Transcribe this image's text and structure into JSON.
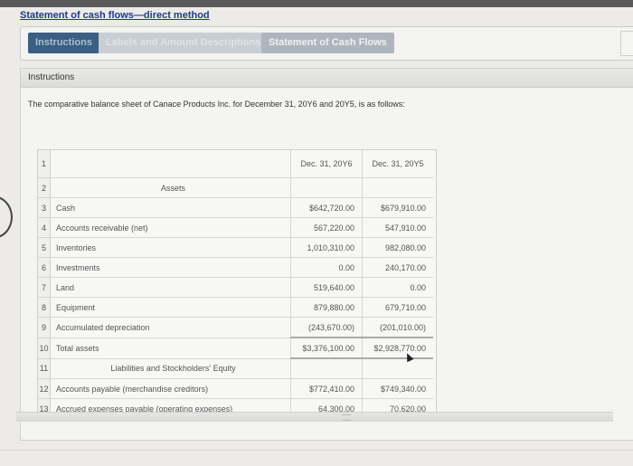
{
  "page": {
    "title": "Statement of cash flows—direct method"
  },
  "tabs": [
    {
      "label": "Instructions",
      "active": true
    },
    {
      "label": "Labels and Amount Descriptions",
      "active": false
    },
    {
      "label": "Statement of Cash Flows",
      "active": false
    }
  ],
  "panel": {
    "header": "Instructions",
    "intro": "The comparative balance sheet of Canace Products Inc. for December 31, 20Y6 and 20Y5, is as follows:"
  },
  "sheet": {
    "columns": [
      "",
      "Dec. 31, 20Y6",
      "Dec. 31, 20Y5"
    ],
    "rows": [
      {
        "num": "1",
        "label": "",
        "v1": "Dec. 31, 20Y6",
        "v2": "Dec. 31, 20Y5"
      },
      {
        "num": "2",
        "label": "Assets",
        "v1": "",
        "v2": ""
      },
      {
        "num": "3",
        "label": "Cash",
        "v1": "$642,720.00",
        "v2": "$679,910.00"
      },
      {
        "num": "4",
        "label": "Accounts receivable (net)",
        "v1": "567,220.00",
        "v2": "547,910.00"
      },
      {
        "num": "5",
        "label": "Inventories",
        "v1": "1,010,310.00",
        "v2": "982,080.00"
      },
      {
        "num": "6",
        "label": "Investments",
        "v1": "0.00",
        "v2": "240,170.00"
      },
      {
        "num": "7",
        "label": "Land",
        "v1": "519,640.00",
        "v2": "0.00"
      },
      {
        "num": "8",
        "label": "Equipment",
        "v1": "879,880.00",
        "v2": "679,710.00"
      },
      {
        "num": "9",
        "label": "Accumulated depreciation",
        "v1": "(243,670.00)",
        "v2": "(201,010.00)"
      },
      {
        "num": "10",
        "label": "Total assets",
        "v1": "$3,376,100.00",
        "v2": "$2,928,770.00"
      },
      {
        "num": "11",
        "label": "Liabilities and Stockholders' Equity",
        "v1": "",
        "v2": ""
      },
      {
        "num": "12",
        "label": "Accounts payable (merchandise creditors)",
        "v1": "$772,410.00",
        "v2": "$749,340.00"
      },
      {
        "num": "13",
        "label": "Accrued expenses payable (operating expenses)",
        "v1": "64,300.00",
        "v2": "70,620.00"
      }
    ]
  }
}
